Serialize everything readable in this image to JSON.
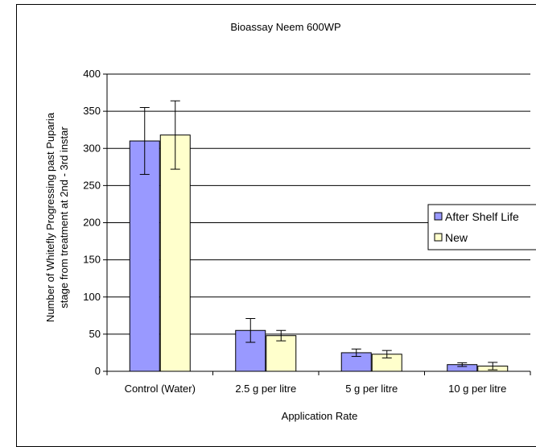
{
  "chart_data": {
    "type": "bar",
    "title": "Bioassay Neem 600WP",
    "xlabel": "Application Rate",
    "ylabel": "Number of Whitefly Progressing past Puparia stage from treatment at 2nd - 3rd instar",
    "ylabel_lines": [
      "Number of Whitefly Progressing past Puparia",
      "stage from treatment at 2nd - 3rd instar"
    ],
    "categories": [
      "Control (Water)",
      "2.5 g per litre",
      "5 g per litre",
      "10 g per litre"
    ],
    "ylim": [
      0,
      400
    ],
    "yticks": [
      0,
      50,
      100,
      150,
      200,
      250,
      300,
      350,
      400
    ],
    "grid": true,
    "legend_position": "right",
    "series": [
      {
        "name": "After Shelf Life",
        "color": "#9999ff",
        "values": [
          310,
          55,
          25,
          9
        ],
        "errors": [
          45,
          16,
          5,
          2.5
        ]
      },
      {
        "name": "New",
        "color": "#ffffcc",
        "values": [
          318,
          48,
          23,
          7
        ],
        "errors": [
          46,
          7,
          5,
          5
        ]
      }
    ]
  }
}
